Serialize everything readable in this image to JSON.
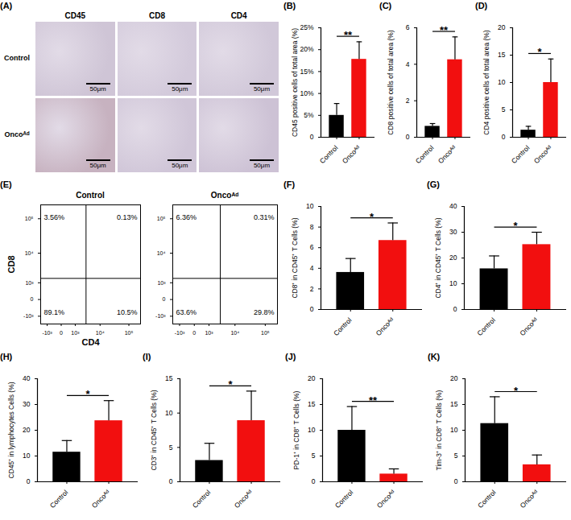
{
  "chart_data": [
    {
      "type": "image",
      "title": "(A)",
      "columns": [
        "CD45",
        "CD8",
        "CD4"
      ],
      "rows": [
        "Control",
        "Oncoᴬᵈ"
      ],
      "scale_bar": "50μm"
    },
    {
      "type": "bar",
      "title": "(B)",
      "categories": [
        "Control",
        "Oncoᴬᵈ"
      ],
      "values": [
        5.0,
        17.8
      ],
      "errors": [
        2.7,
        4.0
      ],
      "colors": [
        "#000000",
        "#f20f0f"
      ],
      "ylabel": "CD45 positive cells of total area (%)",
      "ylim": [
        0,
        25
      ],
      "yticks": [
        0,
        {
          "value": 5,
          "label": "5%"
        },
        {
          "value": 10,
          "label": "10%"
        },
        {
          "value": 15,
          "label": "15%"
        },
        {
          "value": 20,
          "label": "20%"
        },
        {
          "value": 25,
          "label": "25%"
        }
      ],
      "annotations": [
        "**"
      ]
    },
    {
      "type": "bar",
      "title": "(C)",
      "categories": [
        "Control",
        "Oncoᴬᵈ"
      ],
      "values": [
        0.6,
        4.25
      ],
      "errors": [
        0.15,
        1.25
      ],
      "colors": [
        "#000000",
        "#f20f0f"
      ],
      "ylabel": "CD8 positive cells of total area (%)",
      "ylim": [
        0,
        6
      ],
      "yticks": [
        0,
        2,
        4,
        6
      ],
      "annotations": [
        "**"
      ]
    },
    {
      "type": "bar",
      "title": "(D)",
      "categories": [
        "Control",
        "Oncoᴬᵈ"
      ],
      "values": [
        1.3,
        10.0
      ],
      "errors": [
        0.7,
        4.3
      ],
      "colors": [
        "#000000",
        "#f20f0f"
      ],
      "ylabel": "CD4 positive cells of total area (%)",
      "ylim": [
        0,
        20
      ],
      "yticks": [
        0,
        5,
        10,
        15,
        20
      ],
      "annotations": [
        "*"
      ]
    },
    {
      "type": "quadrant",
      "title": "(E)",
      "xlabel": "CD4",
      "ylabel": "CD8",
      "xlim": [
        -2000,
        250000
      ],
      "ylim": [
        -2000,
        250000
      ],
      "xticks": [
        {
          "value": -1000,
          "label": "-10³"
        },
        0,
        {
          "value": 1000,
          "label": "10³"
        },
        {
          "value": 10000,
          "label": "10⁴"
        },
        {
          "value": 100000,
          "label": "10⁵"
        }
      ],
      "yticks": [
        {
          "value": -1000,
          "label": "-10³"
        },
        0,
        {
          "value": 1000,
          "label": "10³"
        },
        {
          "value": 10000,
          "label": "10⁴"
        },
        {
          "value": 100000,
          "label": "10⁵"
        }
      ],
      "gate": {
        "x": 3000,
        "y": 1500
      },
      "data_labels": true,
      "series": [
        {
          "name": "Control",
          "values": [
            3.56,
            0.13,
            89.1,
            10.5
          ],
          "value_labels": [
            "3.56%",
            "0.13%",
            "89.1%",
            "10.5%"
          ]
        },
        {
          "name": "Oncoᴬᵈ",
          "values": [
            6.36,
            0.31,
            63.6,
            29.8
          ],
          "value_labels": [
            "6.36%",
            "0.31%",
            "63.6%",
            "29.8%"
          ]
        }
      ]
    },
    {
      "type": "bar",
      "title": "(F)",
      "categories": [
        "Control",
        "Oncoᴬᵈ"
      ],
      "values": [
        3.6,
        6.7
      ],
      "errors": [
        1.35,
        1.7
      ],
      "colors": [
        "#000000",
        "#f20f0f"
      ],
      "ylabel": "CD8⁺ in CD45⁺ T Cells (%)",
      "ylim": [
        0,
        10
      ],
      "yticks": [
        0,
        2,
        4,
        6,
        8,
        10
      ],
      "annotations": [
        "*"
      ]
    },
    {
      "type": "bar",
      "title": "(G)",
      "categories": [
        "Control",
        "Oncoᴬᵈ"
      ],
      "values": [
        15.8,
        25.2
      ],
      "errors": [
        5.0,
        4.8
      ],
      "colors": [
        "#000000",
        "#f20f0f"
      ],
      "ylabel": "CD4⁺ in CD45⁺ T Cells (%)",
      "ylim": [
        0,
        40
      ],
      "yticks": [
        0,
        10,
        20,
        30,
        40
      ],
      "annotations": [
        "*"
      ]
    },
    {
      "type": "bar",
      "title": "(H)",
      "categories": [
        "Control",
        "Oncoᴬᵈ"
      ],
      "values": [
        11.5,
        23.7
      ],
      "errors": [
        4.5,
        7.8
      ],
      "colors": [
        "#000000",
        "#f20f0f"
      ],
      "ylabel": "CD45⁺ in lymphocytes Cells (%)",
      "ylim": [
        0,
        40
      ],
      "yticks": [
        0,
        10,
        20,
        30,
        40
      ],
      "annotations": [
        "*"
      ]
    },
    {
      "type": "bar",
      "title": "(I)",
      "categories": [
        "Control",
        "Oncoᴬᵈ"
      ],
      "values": [
        3.1,
        8.9
      ],
      "errors": [
        2.5,
        4.3
      ],
      "colors": [
        "#000000",
        "#f20f0f"
      ],
      "ylabel": "CD3⁺ in CD45⁺ T Cells (%)",
      "ylim": [
        0,
        15
      ],
      "yticks": [
        0,
        5,
        10,
        15
      ],
      "annotations": [
        "*"
      ]
    },
    {
      "type": "bar",
      "title": "(J)",
      "categories": [
        "Control",
        "Oncoᴬᵈ"
      ],
      "values": [
        10.0,
        1.5
      ],
      "errors": [
        4.6,
        1.0
      ],
      "colors": [
        "#000000",
        "#f20f0f"
      ],
      "ylabel": "PD-1⁺ in CD8⁺ T Cells (%)",
      "ylim": [
        0,
        20
      ],
      "yticks": [
        0,
        5,
        10,
        15,
        20
      ],
      "annotations": [
        "**"
      ]
    },
    {
      "type": "bar",
      "title": "(K)",
      "categories": [
        "Control",
        "Oncoᴬᵈ"
      ],
      "values": [
        11.3,
        3.3
      ],
      "errors": [
        5.2,
        1.9
      ],
      "colors": [
        "#000000",
        "#f20f0f"
      ],
      "ylabel": "Tim-3⁺ in CD8⁺ T Cells (%)",
      "ylim": [
        0,
        20
      ],
      "yticks": [
        0,
        5,
        10,
        15,
        20
      ],
      "annotations": [
        "*"
      ]
    }
  ]
}
